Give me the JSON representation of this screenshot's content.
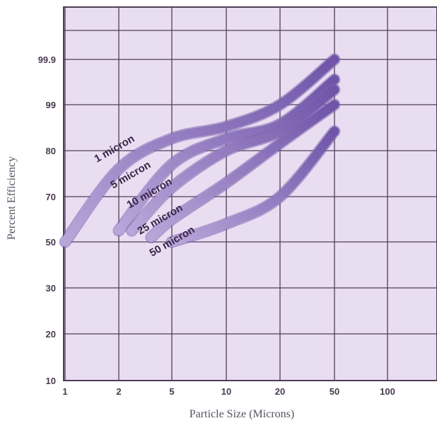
{
  "chart_data": {
    "type": "line",
    "xlabel": "Particle Size (Microns)",
    "ylabel": "Percent Efficiency",
    "x_ticks": [
      "1",
      "2",
      "5",
      "10",
      "20",
      "50",
      "100"
    ],
    "y_ticks": [
      "10",
      "20",
      "30",
      "50",
      "70",
      "80",
      "99",
      "99.9"
    ],
    "grid": true,
    "series": [
      {
        "name": "1 micron",
        "x": [
          1,
          2,
          5,
          10,
          20,
          50
        ],
        "y": [
          50,
          76,
          85,
          90,
          99,
          99.9
        ]
      },
      {
        "name": "5 micron",
        "x": [
          2,
          5,
          10,
          20,
          50
        ],
        "y": [
          55,
          77,
          85,
          91,
          99.5
        ]
      },
      {
        "name": "10 micron",
        "x": [
          2.5,
          5,
          10,
          20,
          50
        ],
        "y": [
          55,
          72,
          80,
          88,
          99.3
        ]
      },
      {
        "name": "25 micron",
        "x": [
          3.5,
          5,
          10,
          20,
          50
        ],
        "y": [
          52,
          60,
          73,
          83,
          99
        ]
      },
      {
        "name": "50 micron",
        "x": [
          5,
          10,
          20,
          50
        ],
        "y": [
          50,
          58,
          70,
          88
        ]
      }
    ],
    "colors": {
      "background": "#e9ddf2",
      "grid": "#4e3f58",
      "band_light": "#b6a2d8",
      "band_dark": "#7558ad"
    }
  }
}
